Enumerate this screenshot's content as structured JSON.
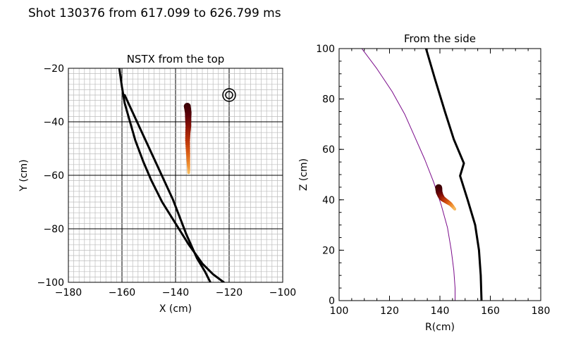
{
  "title": "Shot 130376 from 617.099 to 626.799 ms",
  "colors": {
    "trail": [
      "#3a0004",
      "#5a0008",
      "#8a1206",
      "#b8320a",
      "#d85a14",
      "#ee8a2c",
      "#f6b85c"
    ],
    "separatrix": "#7a0a8a",
    "axis": "#000000",
    "grid_minor": "#bdbdbd",
    "grid_major": "#000000"
  },
  "chart_data": [
    {
      "type": "line",
      "title": "NSTX from the top",
      "xlabel": "X (cm)",
      "ylabel": "Y (cm)",
      "xlim": [
        -180,
        -100
      ],
      "ylim": [
        -100,
        -20
      ],
      "xticks": [
        -180,
        -160,
        -140,
        -120,
        -100
      ],
      "yticks": [
        -100,
        -80,
        -60,
        -40,
        -20
      ],
      "xtick_labels": [
        "−180",
        "−160",
        "−140",
        "−120",
        "−100"
      ],
      "ytick_labels": [
        "−100",
        "−80",
        "−60",
        "−40",
        "−20"
      ],
      "grid": true,
      "grid_minor_step": 2,
      "grid_major_step": 20,
      "series": [
        {
          "name": "outer-wall-curve",
          "color": "#000000",
          "points": [
            [
              -161,
              -20
            ],
            [
              -160,
              -27
            ],
            [
              -159,
              -33
            ],
            [
              -157,
              -40
            ],
            [
              -155,
              -47
            ],
            [
              -152,
              -55
            ],
            [
              -149,
              -62
            ],
            [
              -145,
              -70
            ],
            [
              -140,
              -78
            ],
            [
              -135,
              -86
            ],
            [
              -130,
              -93
            ],
            [
              -126,
              -97
            ],
            [
              -122,
              -100
            ]
          ]
        },
        {
          "name": "inner-diagonal",
          "color": "#000000",
          "points": [
            [
              -159,
              -30
            ],
            [
              -153,
              -43
            ],
            [
              -147,
              -56
            ],
            [
              -141,
              -69
            ],
            [
              -136,
              -82
            ],
            [
              -132,
              -91
            ],
            [
              -129,
              -96
            ],
            [
              -127,
              -100
            ]
          ]
        }
      ],
      "trail": {
        "name": "blob-trajectory",
        "points": [
          [
            -135.6,
            -34.2
          ],
          [
            -135.3,
            -36.5
          ],
          [
            -135.3,
            -39
          ],
          [
            -135.2,
            -41.5
          ],
          [
            -135.4,
            -44
          ],
          [
            -135.5,
            -47
          ],
          [
            -135.4,
            -50
          ],
          [
            -135.3,
            -52.5
          ],
          [
            -135.2,
            -55
          ],
          [
            -135.1,
            -57.5
          ],
          [
            -135.1,
            -59
          ]
        ]
      },
      "marker": {
        "name": "probe-location",
        "x": -120,
        "y": -30
      }
    },
    {
      "type": "line",
      "title": "From the side",
      "xlabel": "R(cm)",
      "ylabel": "Z (cm)",
      "xlim": [
        100,
        180
      ],
      "ylim": [
        0,
        100
      ],
      "xticks": [
        100,
        120,
        140,
        160,
        180
      ],
      "yticks": [
        0,
        20,
        40,
        60,
        80,
        100
      ],
      "xtick_labels": [
        "100",
        "120",
        "140",
        "160",
        "180"
      ],
      "ytick_labels": [
        "0",
        "20",
        "40",
        "60",
        "80",
        "100"
      ],
      "grid": false,
      "series": [
        {
          "name": "wall",
          "color": "#000000",
          "points": [
            [
              134.5,
              100
            ],
            [
              138,
              88
            ],
            [
              142,
              75
            ],
            [
              145.5,
              64
            ],
            [
              149.5,
              54.5
            ],
            [
              148,
              49.5
            ],
            [
              151,
              40
            ],
            [
              154,
              30
            ],
            [
              155.5,
              20
            ],
            [
              156.2,
              10
            ],
            [
              156.5,
              0
            ]
          ]
        },
        {
          "name": "separatrix",
          "color": "#7a0a8a",
          "points": [
            [
              109,
              100
            ],
            [
              115,
              92
            ],
            [
              121,
              83
            ],
            [
              126,
              74
            ],
            [
              130,
              65
            ],
            [
              134,
              56
            ],
            [
              137.5,
              47
            ],
            [
              140.5,
              38
            ],
            [
              143,
              29
            ],
            [
              144.5,
              20
            ],
            [
              145.5,
              12
            ],
            [
              146,
              5
            ],
            [
              146,
              0
            ]
          ]
        }
      ],
      "trail": {
        "name": "blob-trajectory",
        "points": [
          [
            139.5,
            44.8
          ],
          [
            139.7,
            43
          ],
          [
            140.3,
            41.5
          ],
          [
            141,
            40.5
          ],
          [
            142,
            39.8
          ],
          [
            143.2,
            39
          ],
          [
            144.2,
            38.3
          ],
          [
            145.1,
            37.3
          ],
          [
            145.9,
            36.3
          ]
        ]
      }
    }
  ]
}
